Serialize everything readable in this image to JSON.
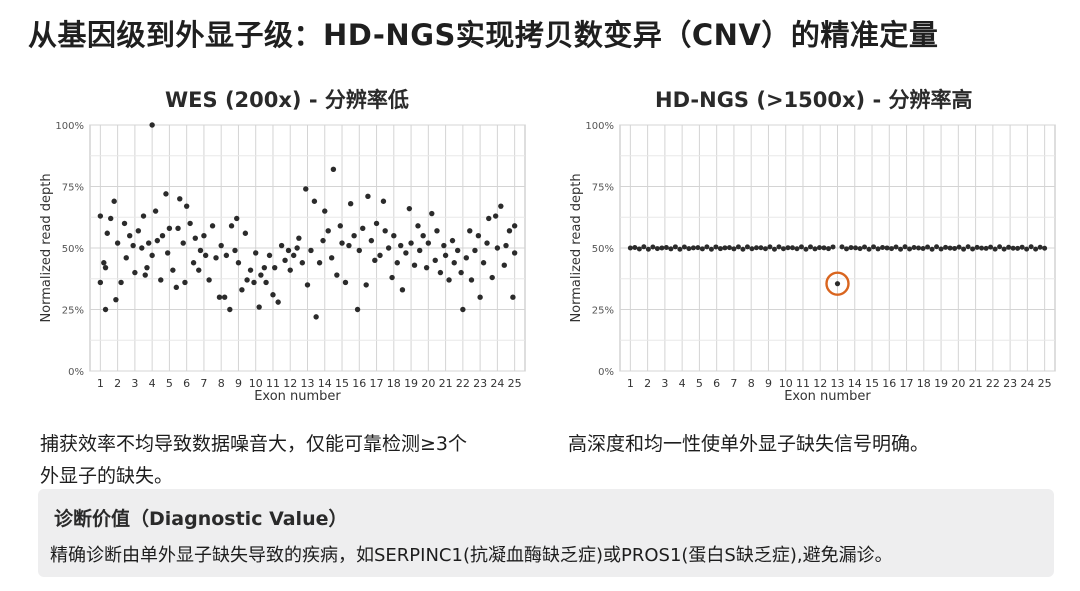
{
  "title": "从基因级到外显子级：HD-NGS实现拷贝数变异（CNV）的精准定量",
  "charts": [
    {
      "title": "WES (200x) - 分辨率低",
      "caption": "捕获效率不均导致数据噪音大，仅能可靠检测≥3个外显子的缺失。"
    },
    {
      "title": "HD-NGS (>1500x) - 分辨率高",
      "caption": "高深度和均一性使单外显子缺失信号明确。"
    }
  ],
  "value_section": {
    "title": "诊断价值（Diagnostic Value）",
    "text": "精确诊断由单外显子缺失导致的疾病，如SERPINC1(抗凝血酶缺乏症)或PROS1(蛋白S缺乏症),避免漏诊。"
  },
  "colors": {
    "point": "#2b2b2b",
    "highlight_ring": "#d9651f",
    "panel": "#eeeeef",
    "grid": "#d4d4d4"
  },
  "chart_data": [
    {
      "type": "scatter",
      "title": "WES (200x) - 分辨率低",
      "xlabel": "Exon number",
      "ylabel": "Normalized read depth",
      "x_ticks": [
        1,
        2,
        3,
        4,
        5,
        6,
        7,
        8,
        9,
        10,
        11,
        12,
        13,
        14,
        15,
        16,
        17,
        18,
        19,
        20,
        21,
        22,
        23,
        24,
        25
      ],
      "y_ticks": [
        "0%",
        "25%",
        "50%",
        "75%",
        "100%"
      ],
      "xlim": [
        0.4,
        25.6
      ],
      "ylim": [
        0,
        100
      ],
      "grid": true,
      "points": [
        [
          1.0,
          36
        ],
        [
          1.0,
          63
        ],
        [
          1.2,
          44
        ],
        [
          1.3,
          42
        ],
        [
          1.3,
          25
        ],
        [
          1.4,
          56
        ],
        [
          1.6,
          62
        ],
        [
          1.8,
          69
        ],
        [
          1.9,
          29
        ],
        [
          2.0,
          52
        ],
        [
          2.2,
          36
        ],
        [
          2.4,
          60
        ],
        [
          2.5,
          46
        ],
        [
          2.7,
          55
        ],
        [
          2.9,
          51
        ],
        [
          3.0,
          40
        ],
        [
          3.2,
          57
        ],
        [
          3.4,
          50
        ],
        [
          3.5,
          63
        ],
        [
          3.6,
          39
        ],
        [
          3.7,
          42
        ],
        [
          3.8,
          52
        ],
        [
          4.0,
          47
        ],
        [
          4.0,
          100
        ],
        [
          4.2,
          65
        ],
        [
          4.3,
          53
        ],
        [
          4.5,
          37
        ],
        [
          4.6,
          55
        ],
        [
          4.8,
          72
        ],
        [
          4.9,
          48
        ],
        [
          5.0,
          58
        ],
        [
          5.2,
          41
        ],
        [
          5.4,
          34
        ],
        [
          5.5,
          58
        ],
        [
          5.6,
          70
        ],
        [
          5.8,
          52
        ],
        [
          5.9,
          36
        ],
        [
          6.0,
          67
        ],
        [
          6.2,
          60
        ],
        [
          6.4,
          44
        ],
        [
          6.5,
          54
        ],
        [
          6.7,
          41
        ],
        [
          6.8,
          49
        ],
        [
          7.0,
          55
        ],
        [
          7.1,
          47
        ],
        [
          7.3,
          37
        ],
        [
          7.5,
          59
        ],
        [
          7.7,
          46
        ],
        [
          7.9,
          30
        ],
        [
          8.0,
          51
        ],
        [
          8.2,
          30
        ],
        [
          8.3,
          47
        ],
        [
          8.5,
          25
        ],
        [
          8.6,
          59
        ],
        [
          8.8,
          49
        ],
        [
          8.9,
          62
        ],
        [
          9.0,
          44
        ],
        [
          9.2,
          33
        ],
        [
          9.4,
          56
        ],
        [
          9.5,
          37
        ],
        [
          9.7,
          41
        ],
        [
          9.9,
          36
        ],
        [
          10.0,
          48
        ],
        [
          10.2,
          26
        ],
        [
          10.3,
          39
        ],
        [
          10.5,
          42
        ],
        [
          10.6,
          36
        ],
        [
          10.8,
          47
        ],
        [
          11.0,
          31
        ],
        [
          11.1,
          42
        ],
        [
          11.3,
          28
        ],
        [
          11.5,
          51
        ],
        [
          11.7,
          45
        ],
        [
          11.9,
          49
        ],
        [
          12.0,
          41
        ],
        [
          12.2,
          47
        ],
        [
          12.4,
          50
        ],
        [
          12.5,
          54
        ],
        [
          12.7,
          44
        ],
        [
          12.9,
          74
        ],
        [
          13.0,
          35
        ],
        [
          13.2,
          49
        ],
        [
          13.4,
          69
        ],
        [
          13.5,
          22
        ],
        [
          13.7,
          44
        ],
        [
          13.9,
          53
        ],
        [
          14.0,
          65
        ],
        [
          14.2,
          57
        ],
        [
          14.4,
          46
        ],
        [
          14.5,
          82
        ],
        [
          14.7,
          39
        ],
        [
          14.9,
          59
        ],
        [
          15.0,
          52
        ],
        [
          15.2,
          36
        ],
        [
          15.4,
          51
        ],
        [
          15.5,
          68
        ],
        [
          15.7,
          55
        ],
        [
          15.9,
          25
        ],
        [
          16.0,
          49
        ],
        [
          16.2,
          58
        ],
        [
          16.4,
          35
        ],
        [
          16.5,
          71
        ],
        [
          16.7,
          53
        ],
        [
          16.9,
          45
        ],
        [
          17.0,
          60
        ],
        [
          17.2,
          47
        ],
        [
          17.4,
          69
        ],
        [
          17.5,
          57
        ],
        [
          17.7,
          50
        ],
        [
          17.9,
          38
        ],
        [
          18.0,
          55
        ],
        [
          18.2,
          44
        ],
        [
          18.4,
          51
        ],
        [
          18.5,
          33
        ],
        [
          18.7,
          48
        ],
        [
          18.9,
          66
        ],
        [
          19.0,
          52
        ],
        [
          19.2,
          43
        ],
        [
          19.4,
          59
        ],
        [
          19.5,
          49
        ],
        [
          19.7,
          55
        ],
        [
          19.9,
          42
        ],
        [
          20.0,
          52
        ],
        [
          20.2,
          64
        ],
        [
          20.4,
          45
        ],
        [
          20.5,
          57
        ],
        [
          20.7,
          40
        ],
        [
          20.9,
          51
        ],
        [
          21.0,
          47
        ],
        [
          21.2,
          37
        ],
        [
          21.4,
          53
        ],
        [
          21.5,
          44
        ],
        [
          21.7,
          49
        ],
        [
          21.9,
          40
        ],
        [
          22.0,
          25
        ],
        [
          22.2,
          46
        ],
        [
          22.4,
          57
        ],
        [
          22.5,
          37
        ],
        [
          22.7,
          49
        ],
        [
          22.9,
          55
        ],
        [
          23.0,
          30
        ],
        [
          23.2,
          44
        ],
        [
          23.4,
          52
        ],
        [
          23.5,
          62
        ],
        [
          23.7,
          38
        ],
        [
          23.9,
          63
        ],
        [
          24.0,
          50
        ],
        [
          24.2,
          67
        ],
        [
          24.4,
          43
        ],
        [
          24.5,
          51
        ],
        [
          24.7,
          57
        ],
        [
          24.9,
          30
        ],
        [
          25.0,
          48
        ],
        [
          25.0,
          59
        ]
      ]
    },
    {
      "type": "scatter",
      "title": "HD-NGS (>1500x) - 分辨率高",
      "xlabel": "Exon number",
      "ylabel": "Normalized read depth",
      "x_ticks": [
        1,
        2,
        3,
        4,
        5,
        6,
        7,
        8,
        9,
        10,
        11,
        12,
        13,
        14,
        15,
        16,
        17,
        18,
        19,
        20,
        21,
        22,
        23,
        24,
        25
      ],
      "y_ticks": [
        "0%",
        "25%",
        "50%",
        "75%",
        "100%"
      ],
      "xlim": [
        0.4,
        25.6
      ],
      "ylim": [
        0,
        100
      ],
      "grid": true,
      "baseline_range": [
        1,
        25
      ],
      "baseline_value": 50,
      "highlight_point": [
        13,
        35.5
      ]
    }
  ]
}
